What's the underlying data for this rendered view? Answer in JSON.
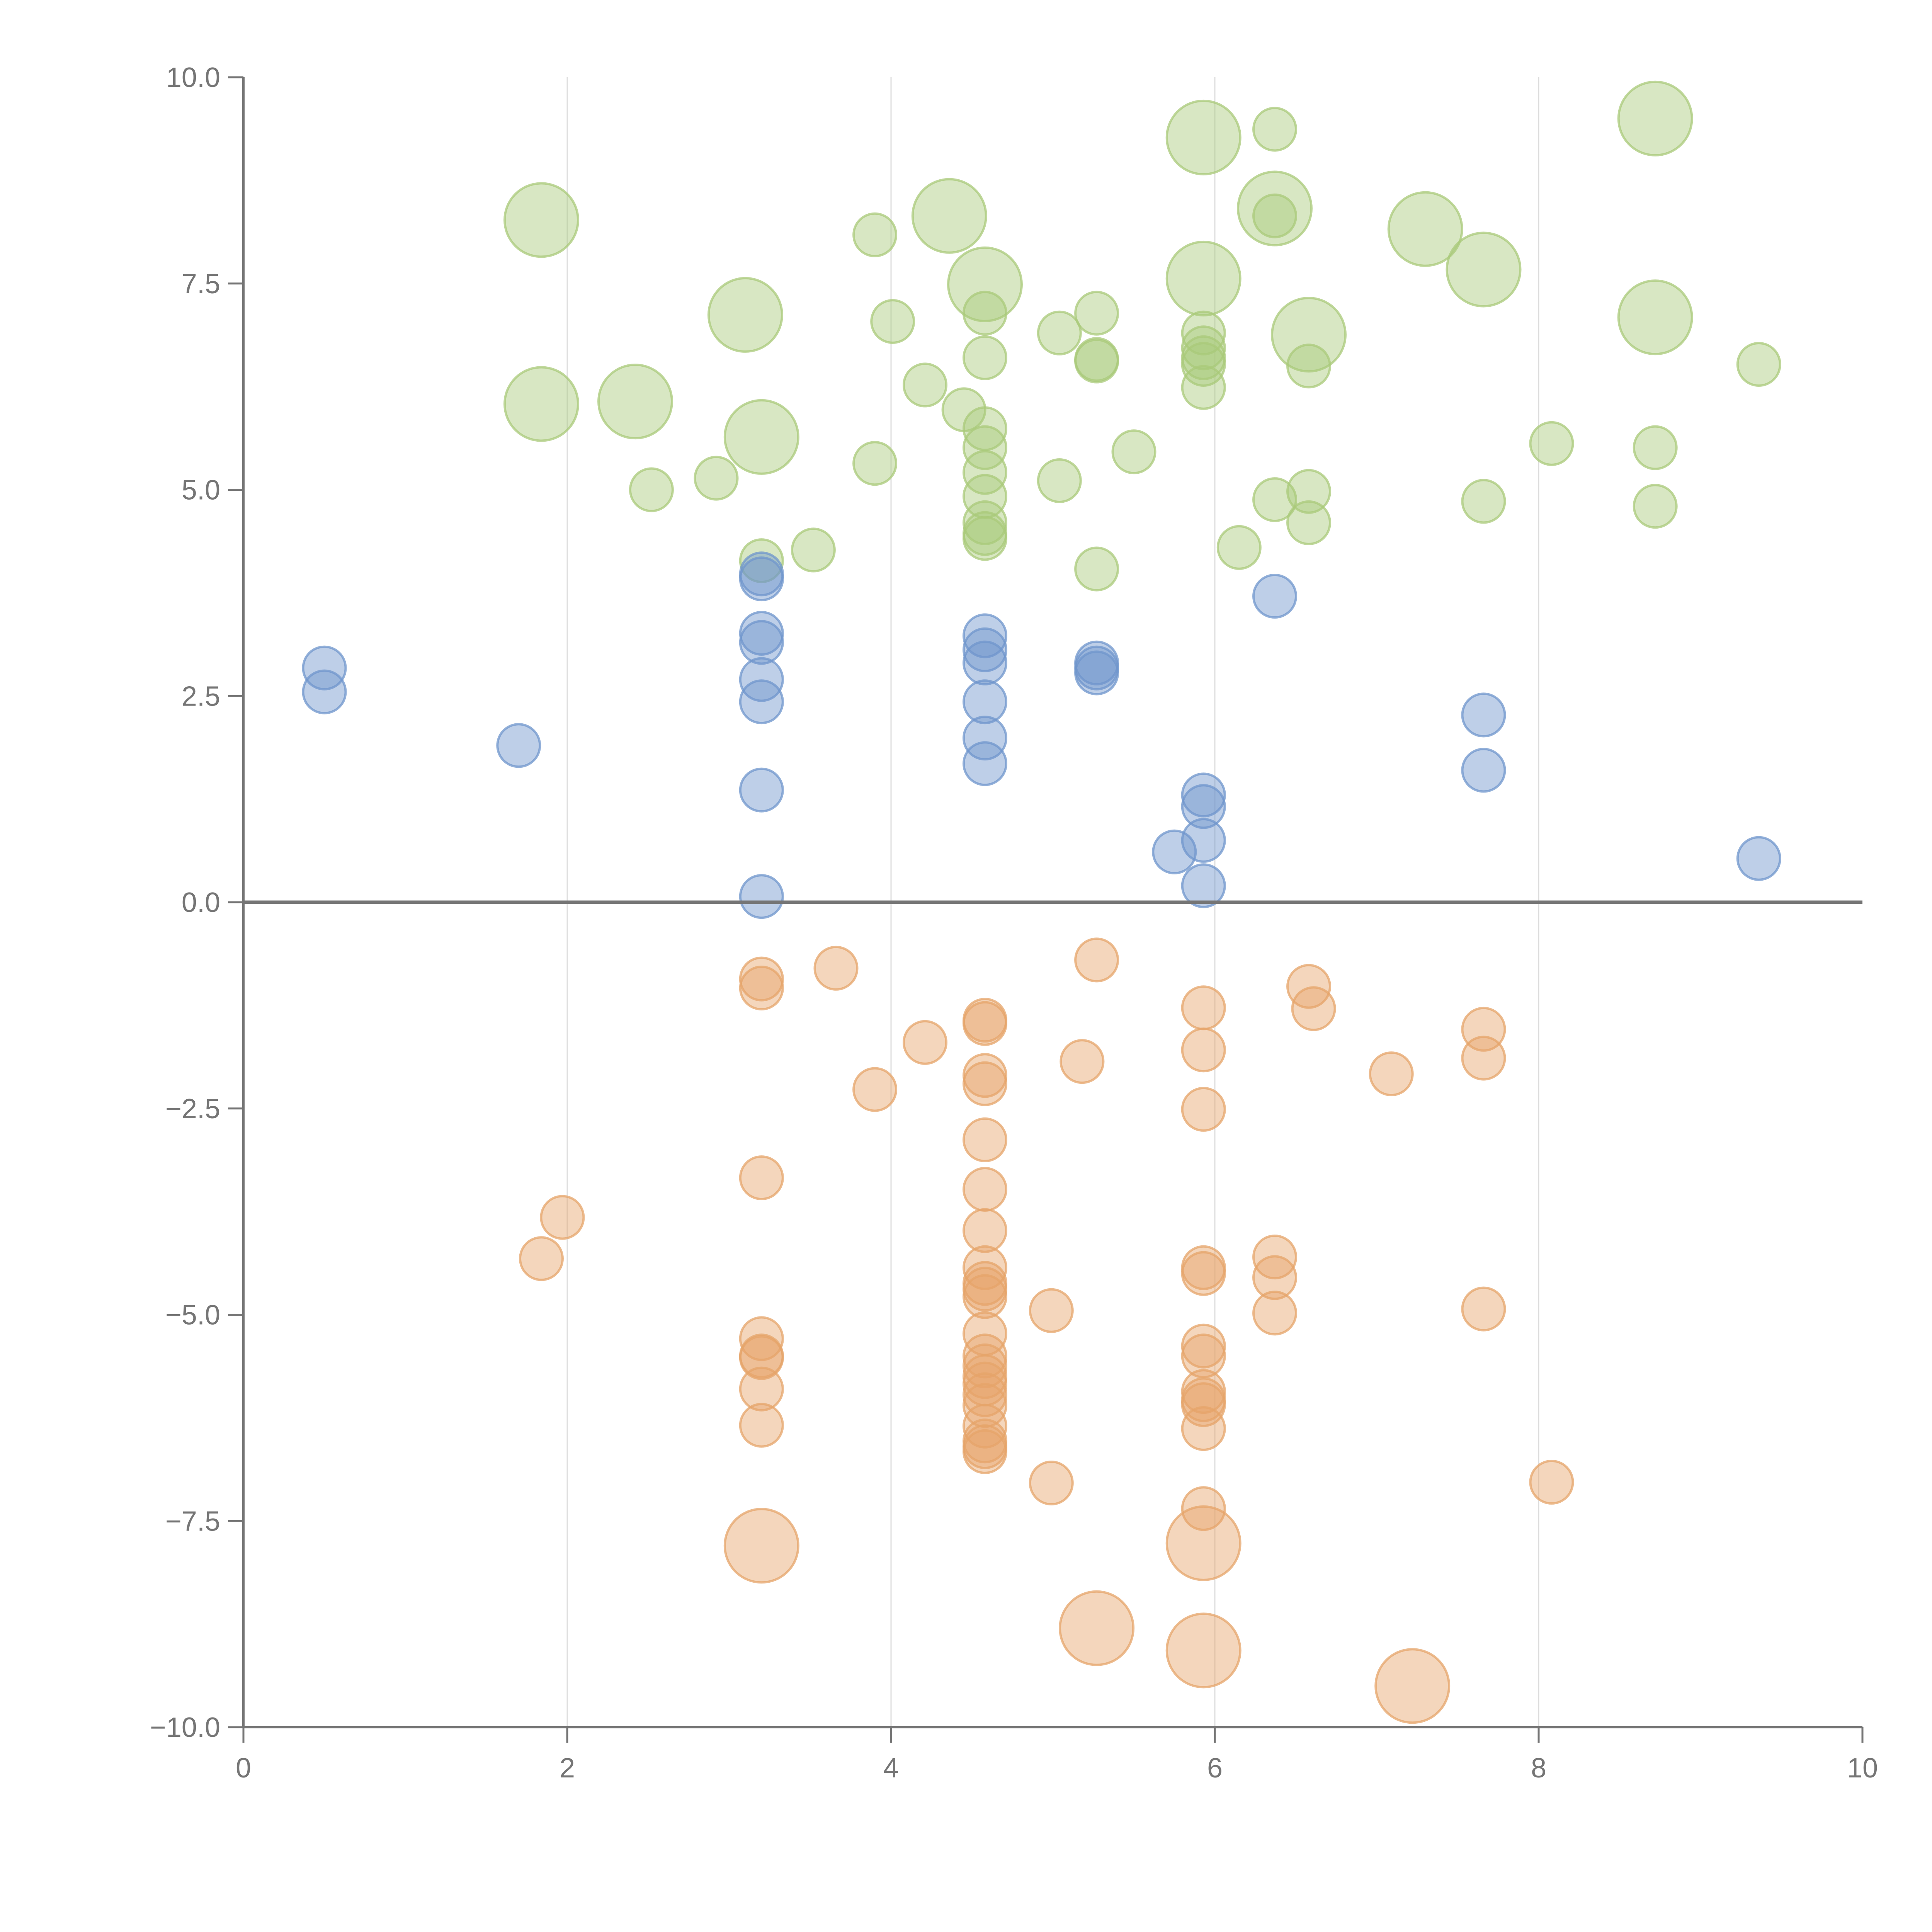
{
  "chart_data": {
    "type": "scatter",
    "title": "",
    "xlabel": "",
    "ylabel": "",
    "xlim": [
      0,
      10
    ],
    "ylim": [
      -10,
      10
    ],
    "grid_x": true,
    "grid_y": false,
    "zero_line": true,
    "x_ticks": [
      0,
      2,
      4,
      6,
      8,
      10
    ],
    "x_tick_labels": [
      "0",
      "2",
      "4",
      "6",
      "8",
      "10"
    ],
    "y_ticks": [
      10,
      7.5,
      5,
      2.5,
      0,
      -2.5,
      -5,
      -7.5,
      -10
    ],
    "y_tick_labels": [
      "10.0",
      "7.5",
      "5.0",
      "2.5",
      "0.0",
      "−2.5",
      "−5.0",
      "−7.5",
      "−10.0"
    ],
    "colors": {
      "green": "#a9c97a",
      "blue": "#6f95cc",
      "orange": "#e6a46a"
    },
    "series": [
      {
        "name": "green",
        "points": [
          [
            1.84,
            8.27,
            2
          ],
          [
            3.1,
            7.12,
            2
          ],
          [
            1.84,
            6.04,
            2
          ],
          [
            2.42,
            6.07,
            2
          ],
          [
            3.2,
            5.64,
            2
          ],
          [
            4.36,
            8.32,
            2
          ],
          [
            4.58,
            7.49,
            2
          ],
          [
            5.93,
            9.27,
            2
          ],
          [
            5.93,
            7.56,
            2
          ],
          [
            6.37,
            8.41,
            2
          ],
          [
            6.58,
            6.88,
            2
          ],
          [
            7.3,
            8.16,
            2
          ],
          [
            7.66,
            7.67,
            2
          ],
          [
            8.72,
            9.5,
            2
          ],
          [
            8.72,
            7.09,
            2
          ],
          [
            3.9,
            8.09,
            1
          ],
          [
            4.01,
            7.04,
            1
          ],
          [
            4.21,
            6.27,
            1
          ],
          [
            4.45,
            5.97,
            1
          ],
          [
            4.58,
            7.14,
            1
          ],
          [
            4.58,
            6.6,
            1
          ],
          [
            4.58,
            5.74,
            1
          ],
          [
            4.58,
            5.51,
            1
          ],
          [
            4.58,
            5.21,
            1
          ],
          [
            4.58,
            4.92,
            1
          ],
          [
            4.58,
            4.6,
            1
          ],
          [
            4.58,
            4.47,
            1
          ],
          [
            4.58,
            4.41,
            1
          ],
          [
            3.9,
            5.32,
            1
          ],
          [
            3.52,
            4.27,
            1
          ],
          [
            3.2,
            4.14,
            1
          ],
          [
            2.52,
            5.0,
            1
          ],
          [
            2.92,
            5.14,
            1
          ],
          [
            5.04,
            5.11,
            1
          ],
          [
            5.04,
            6.9,
            1
          ],
          [
            5.27,
            7.14,
            1
          ],
          [
            5.27,
            6.58,
            1
          ],
          [
            5.27,
            6.56,
            1
          ],
          [
            5.27,
            4.04,
            1
          ],
          [
            5.5,
            5.46,
            1
          ],
          [
            5.93,
            6.9,
            1
          ],
          [
            5.93,
            6.72,
            1
          ],
          [
            5.93,
            6.6,
            1
          ],
          [
            5.93,
            6.52,
            1
          ],
          [
            5.93,
            6.24,
            1
          ],
          [
            6.15,
            4.3,
            1
          ],
          [
            6.37,
            9.37,
            1
          ],
          [
            6.37,
            8.32,
            1
          ],
          [
            6.37,
            4.88,
            1
          ],
          [
            6.58,
            6.5,
            1
          ],
          [
            6.58,
            4.98,
            1
          ],
          [
            6.58,
            4.6,
            1
          ],
          [
            7.66,
            4.86,
            1
          ],
          [
            8.08,
            5.56,
            1
          ],
          [
            8.72,
            5.51,
            1
          ],
          [
            8.72,
            4.8,
            1
          ],
          [
            9.36,
            6.52,
            1
          ]
        ]
      },
      {
        "name": "blue",
        "points": [
          [
            0.5,
            2.84,
            1
          ],
          [
            0.5,
            2.55,
            1
          ],
          [
            1.7,
            1.9,
            1
          ],
          [
            3.2,
            3.98,
            1
          ],
          [
            3.2,
            3.92,
            1
          ],
          [
            3.2,
            3.26,
            1
          ],
          [
            3.2,
            3.15,
            1
          ],
          [
            3.2,
            2.7,
            1
          ],
          [
            3.2,
            2.43,
            1
          ],
          [
            3.2,
            1.36,
            1
          ],
          [
            3.2,
            0.07,
            1
          ],
          [
            4.58,
            3.23,
            1
          ],
          [
            4.58,
            3.06,
            1
          ],
          [
            4.58,
            2.9,
            1
          ],
          [
            4.58,
            2.43,
            1
          ],
          [
            4.58,
            1.99,
            1
          ],
          [
            4.58,
            1.68,
            1
          ],
          [
            5.27,
            2.9,
            1
          ],
          [
            5.27,
            2.84,
            1
          ],
          [
            5.27,
            2.78,
            1
          ],
          [
            5.75,
            0.61,
            1
          ],
          [
            5.93,
            1.3,
            1
          ],
          [
            5.93,
            1.16,
            1
          ],
          [
            5.93,
            0.75,
            1
          ],
          [
            5.93,
            0.2,
            1
          ],
          [
            6.37,
            3.71,
            1
          ],
          [
            7.66,
            2.27,
            1
          ],
          [
            7.66,
            1.6,
            1
          ],
          [
            9.36,
            0.53,
            1
          ]
        ]
      },
      {
        "name": "orange",
        "points": [
          [
            1.84,
            -4.32,
            1
          ],
          [
            1.97,
            -3.82,
            1
          ],
          [
            3.2,
            -0.93,
            1
          ],
          [
            3.2,
            -1.04,
            1
          ],
          [
            3.2,
            -3.34,
            1
          ],
          [
            3.2,
            -5.29,
            1
          ],
          [
            3.2,
            -5.5,
            1
          ],
          [
            3.2,
            -5.52,
            1
          ],
          [
            3.2,
            -5.9,
            1
          ],
          [
            3.2,
            -6.34,
            1
          ],
          [
            3.66,
            -0.8,
            1
          ],
          [
            3.9,
            -2.27,
            1
          ],
          [
            4.21,
            -1.7,
            1
          ],
          [
            4.58,
            -1.43,
            1
          ],
          [
            4.58,
            -1.47,
            1
          ],
          [
            4.58,
            -2.1,
            1
          ],
          [
            4.58,
            -2.2,
            1
          ],
          [
            4.58,
            -2.88,
            1
          ],
          [
            4.58,
            -3.48,
            1
          ],
          [
            4.58,
            -3.98,
            1
          ],
          [
            4.58,
            -4.43,
            1
          ],
          [
            4.58,
            -4.62,
            1
          ],
          [
            4.58,
            -4.69,
            1
          ],
          [
            4.58,
            -4.78,
            1
          ],
          [
            4.58,
            -5.23,
            1
          ],
          [
            4.58,
            -5.5,
            1
          ],
          [
            4.58,
            -5.62,
            1
          ],
          [
            4.58,
            -5.75,
            1
          ],
          [
            4.58,
            -5.84,
            1
          ],
          [
            4.58,
            -5.97,
            1
          ],
          [
            4.58,
            -6.1,
            1
          ],
          [
            4.58,
            -6.35,
            1
          ],
          [
            4.58,
            -6.53,
            1
          ],
          [
            4.58,
            -6.6,
            1
          ],
          [
            4.58,
            -6.66,
            1
          ],
          [
            4.99,
            -4.95,
            1
          ],
          [
            4.99,
            -7.04,
            1
          ],
          [
            5.18,
            -1.93,
            1
          ],
          [
            5.27,
            -0.7,
            1
          ],
          [
            5.93,
            -1.28,
            1
          ],
          [
            5.93,
            -1.79,
            1
          ],
          [
            5.93,
            -2.51,
            1
          ],
          [
            5.93,
            -4.43,
            1
          ],
          [
            5.93,
            -4.5,
            1
          ],
          [
            5.93,
            -5.38,
            1
          ],
          [
            5.93,
            -5.5,
            1
          ],
          [
            5.93,
            -5.93,
            1
          ],
          [
            5.93,
            -6.03,
            1
          ],
          [
            5.93,
            -6.09,
            1
          ],
          [
            5.93,
            -6.38,
            1
          ],
          [
            5.93,
            -7.35,
            1
          ],
          [
            6.37,
            -4.3,
            1
          ],
          [
            6.37,
            -4.55,
            1
          ],
          [
            6.37,
            -4.98,
            1
          ],
          [
            6.58,
            -1.02,
            1
          ],
          [
            6.61,
            -1.29,
            1
          ],
          [
            7.09,
            -2.08,
            1
          ],
          [
            7.66,
            -1.54,
            1
          ],
          [
            7.66,
            -1.89,
            1
          ],
          [
            7.66,
            -4.93,
            1
          ],
          [
            8.08,
            -7.03,
            1
          ],
          [
            3.2,
            -7.8,
            2
          ],
          [
            5.93,
            -7.77,
            2
          ],
          [
            5.27,
            -8.8,
            2
          ],
          [
            5.93,
            -9.07,
            2
          ],
          [
            7.22,
            -9.5,
            2
          ]
        ]
      }
    ]
  }
}
